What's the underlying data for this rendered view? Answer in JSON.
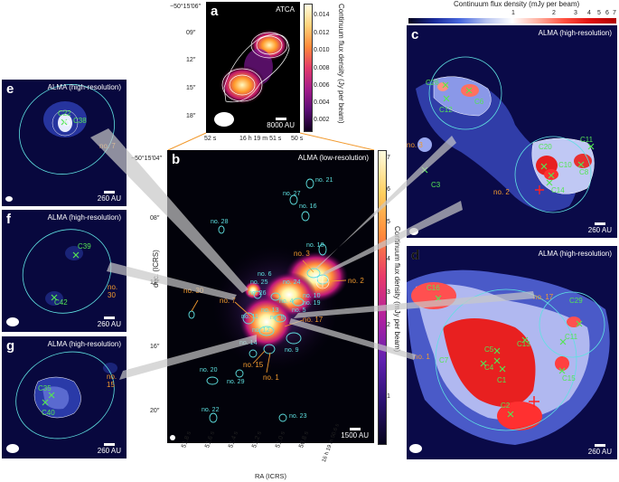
{
  "panels": {
    "a": {
      "label": "a",
      "title": "ATCA",
      "scalebar": "8000 AU",
      "yticks": [
        "−50°15′06′′",
        "09′′",
        "12′′",
        "15′′",
        "18′′"
      ],
      "xticks": [
        "52 s",
        "16 h 19 m 51 s",
        "50 s"
      ],
      "colorbar_label": "Continuum flux density (Jy per beam)",
      "colorbar_ticks": [
        "0.014",
        "0.012",
        "0.010",
        "0.008",
        "0.006",
        "0.004",
        "0.002"
      ]
    },
    "b": {
      "label": "b",
      "title": "ALMA (low-resolution)",
      "scalebar": "1500 AU",
      "ylabel": "dec. (ICRS)",
      "xlabel": "RA (ICRS)",
      "yticks": [
        "−50°15′04′′",
        "08′′",
        "12′′",
        "16′′",
        "20′′"
      ],
      "xticks": [
        "51.8 s",
        "51.6 s",
        "51.4 s",
        "51.2 s",
        "51.0 s",
        "50.8 s",
        "16 h 19 m 50.6 s"
      ],
      "colorbar_label": "Continuum flux density (mJy per beam)",
      "colorbar_ticks": [
        "7",
        "6",
        "5",
        "4",
        "3",
        "2",
        "1"
      ],
      "sources_cyan": [
        "no. 21",
        "no. 27",
        "no. 16",
        "no. 28",
        "no. 18",
        "no. 25",
        "no. 26",
        "no. 24",
        "no. 10",
        "no. 19",
        "no. 5",
        "no. 13",
        "no. 4",
        "no. 11",
        "no. 8",
        "no. 12",
        "no. 14",
        "no. 9",
        "no. 20",
        "no. 29",
        "no. 22",
        "no. 23",
        "no. 6"
      ],
      "sources_orange": [
        "no. 3",
        "no. 2",
        "no. 30",
        "no. 7",
        "no. 17",
        "no. 15",
        "no. 1"
      ]
    },
    "c": {
      "label": "c",
      "title": "ALMA (high-resolution)",
      "scalebar": "260 AU",
      "top_colorbar_label": "Continuum flux density (mJy per beam)",
      "top_colorbar_ticks": [
        "1",
        "2",
        "3",
        "4",
        "5",
        "6",
        "7"
      ],
      "sources": [
        "C26",
        "C6",
        "C12",
        "C20",
        "C10",
        "C11",
        "C8",
        "C3",
        "C14"
      ],
      "arrows": [
        "no. 3",
        "no. 2"
      ]
    },
    "d": {
      "label": "d",
      "title": "ALMA (high-resolution)",
      "scalebar": "260 AU",
      "sources": [
        "C16",
        "C29",
        "C13",
        "C11",
        "C5",
        "C4",
        "C1",
        "C15",
        "C2",
        "C7"
      ],
      "arrows": [
        "no. 17",
        "no. 1"
      ]
    },
    "e": {
      "label": "e",
      "title": "ALMA (high-resolution)",
      "scalebar": "260 AU",
      "sources": [
        "C22",
        "C38"
      ],
      "arrows": [
        "no. 7"
      ]
    },
    "f": {
      "label": "f",
      "title": "ALMA (high-resolution)",
      "scalebar": "260 AU",
      "sources": [
        "C39",
        "C42"
      ],
      "arrows": [
        "no. 30"
      ]
    },
    "g": {
      "label": "g",
      "title": "ALMA (high-resolution)",
      "scalebar": "260 AU",
      "sources": [
        "C35",
        "C40"
      ],
      "arrows": [
        "no. 15"
      ]
    }
  },
  "colors": {
    "cyan": "#5fe1e1",
    "green": "#54e554",
    "orange": "#f29a2e",
    "red": "#ff2020"
  }
}
